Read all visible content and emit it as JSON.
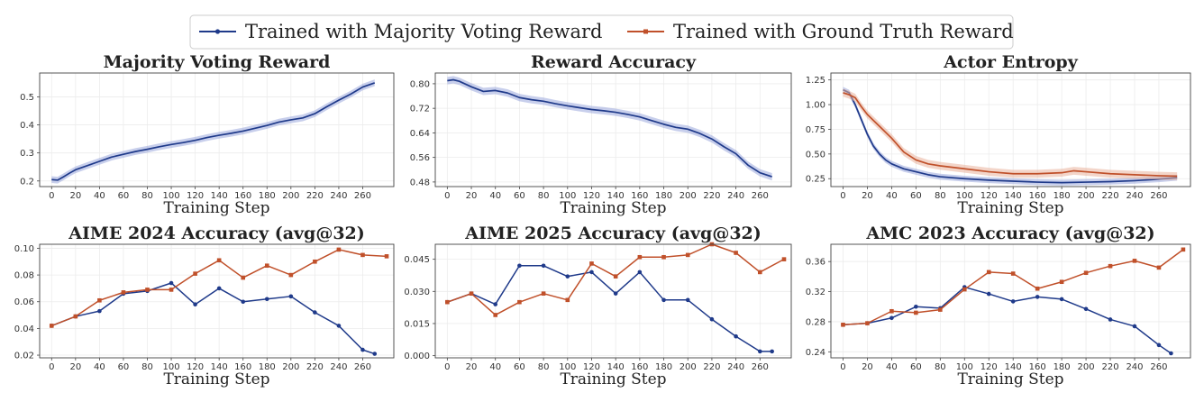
{
  "legend": [
    {
      "label": "Trained with Majority Voting Reward",
      "color": "#1f3a8a",
      "marker": "circle"
    },
    {
      "label": "Trained with Ground Truth Reward",
      "color": "#c0502a",
      "marker": "square"
    }
  ],
  "colors": {
    "majority": "#1f3a8a",
    "ground_truth": "#c0502a",
    "band_majority": "#9aa8dc",
    "band_gt": "#eab29c"
  },
  "chart_data": [
    {
      "type": "line",
      "title": "Majority Voting Reward",
      "xlabel": "Training Step",
      "xticks": [
        0,
        20,
        40,
        60,
        80,
        100,
        120,
        140,
        160,
        180,
        200,
        220,
        240,
        260
      ],
      "yticks": [
        0.2,
        0.3,
        0.4,
        0.5
      ],
      "ytick_labels": [
        "0.2",
        "0.3",
        "0.4",
        "0.5"
      ],
      "xlim": [
        -10,
        286
      ],
      "ylim": [
        0.18,
        0.585
      ],
      "grid": true,
      "series": [
        {
          "name": "Trained with Majority Voting Reward",
          "key": "majority",
          "band": 0.012,
          "x": [
            0,
            5,
            10,
            15,
            20,
            30,
            40,
            50,
            60,
            70,
            80,
            90,
            100,
            110,
            120,
            130,
            140,
            150,
            160,
            170,
            180,
            190,
            200,
            210,
            220,
            230,
            240,
            250,
            260,
            270
          ],
          "y": [
            0.205,
            0.203,
            0.215,
            0.228,
            0.24,
            0.255,
            0.27,
            0.285,
            0.295,
            0.305,
            0.313,
            0.322,
            0.33,
            0.337,
            0.345,
            0.355,
            0.363,
            0.37,
            0.378,
            0.388,
            0.398,
            0.41,
            0.418,
            0.425,
            0.44,
            0.465,
            0.488,
            0.51,
            0.535,
            0.55
          ]
        }
      ]
    },
    {
      "type": "line",
      "title": "Reward Accuracy",
      "xlabel": "Training Step",
      "xticks": [
        0,
        20,
        40,
        60,
        80,
        100,
        120,
        140,
        160,
        180,
        200,
        220,
        240,
        260
      ],
      "yticks": [
        0.48,
        0.56,
        0.64,
        0.72,
        0.8
      ],
      "ytick_labels": [
        "0.48",
        "0.56",
        "0.64",
        "0.72",
        "0.80"
      ],
      "xlim": [
        -10,
        286
      ],
      "ylim": [
        0.465,
        0.835
      ],
      "grid": true,
      "series": [
        {
          "name": "Trained with Majority Voting Reward",
          "key": "majority",
          "band": 0.012,
          "x": [
            0,
            5,
            10,
            20,
            30,
            40,
            50,
            60,
            70,
            80,
            90,
            100,
            110,
            120,
            130,
            140,
            150,
            160,
            170,
            180,
            190,
            200,
            210,
            220,
            230,
            240,
            250,
            260,
            270
          ],
          "y": [
            0.81,
            0.813,
            0.808,
            0.79,
            0.775,
            0.778,
            0.77,
            0.755,
            0.748,
            0.743,
            0.735,
            0.728,
            0.722,
            0.716,
            0.712,
            0.707,
            0.7,
            0.692,
            0.68,
            0.668,
            0.658,
            0.652,
            0.638,
            0.62,
            0.595,
            0.572,
            0.535,
            0.51,
            0.497
          ]
        }
      ]
    },
    {
      "type": "line",
      "title": "Actor Entropy",
      "xlabel": "Training Step",
      "xticks": [
        0,
        20,
        40,
        60,
        80,
        100,
        120,
        140,
        160,
        180,
        200,
        220,
        240,
        260
      ],
      "yticks": [
        0.25,
        0.5,
        0.75,
        1.0,
        1.25
      ],
      "ytick_labels": [
        "0.25",
        "0.50",
        "0.75",
        "1.00",
        "1.25"
      ],
      "xlim": [
        -10,
        286
      ],
      "ylim": [
        0.17,
        1.32
      ],
      "grid": true,
      "series": [
        {
          "name": "Trained with Majority Voting Reward",
          "key": "majority",
          "band": 0.03,
          "x": [
            0,
            5,
            10,
            15,
            20,
            25,
            30,
            35,
            40,
            50,
            60,
            70,
            80,
            100,
            120,
            140,
            160,
            180,
            200,
            220,
            240,
            260,
            275
          ],
          "y": [
            1.15,
            1.12,
            1.0,
            0.85,
            0.7,
            0.58,
            0.5,
            0.44,
            0.4,
            0.35,
            0.32,
            0.29,
            0.27,
            0.25,
            0.235,
            0.225,
            0.215,
            0.21,
            0.215,
            0.22,
            0.23,
            0.245,
            0.26
          ]
        },
        {
          "name": "Trained with Ground Truth Reward",
          "key": "ground_truth",
          "band": 0.04,
          "x": [
            0,
            5,
            10,
            15,
            20,
            30,
            40,
            50,
            60,
            70,
            80,
            100,
            120,
            140,
            160,
            180,
            190,
            200,
            220,
            240,
            260,
            275
          ],
          "y": [
            1.12,
            1.1,
            1.07,
            0.98,
            0.9,
            0.78,
            0.66,
            0.52,
            0.44,
            0.4,
            0.38,
            0.35,
            0.32,
            0.3,
            0.3,
            0.31,
            0.33,
            0.32,
            0.3,
            0.29,
            0.28,
            0.275
          ]
        }
      ]
    },
    {
      "type": "line",
      "title": "AIME 2024 Accuracy (avg@32)",
      "xlabel": "Training Step",
      "xticks": [
        0,
        20,
        40,
        60,
        80,
        100,
        120,
        140,
        160,
        180,
        200,
        220,
        240,
        260
      ],
      "yticks": [
        0.02,
        0.04,
        0.06,
        0.08,
        0.1
      ],
      "ytick_labels": [
        "0.02",
        "0.04",
        "0.06",
        "0.08",
        "0.10"
      ],
      "xlim": [
        -10,
        286
      ],
      "ylim": [
        0.018,
        0.103
      ],
      "grid": true,
      "series": [
        {
          "name": "Trained with Majority Voting Reward",
          "key": "majority",
          "x": [
            0,
            20,
            40,
            60,
            80,
            100,
            120,
            140,
            160,
            180,
            200,
            220,
            240,
            260,
            270
          ],
          "y": [
            0.042,
            0.049,
            0.053,
            0.066,
            0.068,
            0.074,
            0.058,
            0.07,
            0.06,
            0.062,
            0.064,
            0.052,
            0.042,
            0.024,
            0.021
          ]
        },
        {
          "name": "Trained with Ground Truth Reward",
          "key": "ground_truth",
          "x": [
            0,
            20,
            40,
            60,
            80,
            100,
            120,
            140,
            160,
            180,
            200,
            220,
            240,
            260,
            280
          ],
          "y": [
            0.042,
            0.049,
            0.061,
            0.067,
            0.069,
            0.069,
            0.081,
            0.091,
            0.078,
            0.087,
            0.08,
            0.09,
            0.099,
            0.095,
            0.094
          ]
        }
      ]
    },
    {
      "type": "line",
      "title": "AIME 2025 Accuracy (avg@32)",
      "xlabel": "Training Step",
      "xticks": [
        0,
        20,
        40,
        60,
        80,
        100,
        120,
        140,
        160,
        180,
        200,
        220,
        240,
        260
      ],
      "yticks": [
        0.0,
        0.015,
        0.03,
        0.045
      ],
      "ytick_labels": [
        "0.000",
        "0.015",
        "0.030",
        "0.045"
      ],
      "xlim": [
        -10,
        286
      ],
      "ylim": [
        -0.001,
        0.052
      ],
      "grid": true,
      "series": [
        {
          "name": "Trained with Majority Voting Reward",
          "key": "majority",
          "x": [
            0,
            20,
            40,
            60,
            80,
            100,
            120,
            140,
            160,
            180,
            200,
            220,
            240,
            260,
            270
          ],
          "y": [
            0.025,
            0.029,
            0.024,
            0.042,
            0.042,
            0.037,
            0.039,
            0.029,
            0.039,
            0.026,
            0.026,
            0.017,
            0.009,
            0.002,
            0.002
          ]
        },
        {
          "name": "Trained with Ground Truth Reward",
          "key": "ground_truth",
          "x": [
            0,
            20,
            40,
            60,
            80,
            100,
            120,
            140,
            160,
            180,
            200,
            220,
            240,
            260,
            280
          ],
          "y": [
            0.025,
            0.029,
            0.019,
            0.025,
            0.029,
            0.026,
            0.043,
            0.037,
            0.046,
            0.046,
            0.047,
            0.052,
            0.048,
            0.039,
            0.045
          ]
        }
      ]
    },
    {
      "type": "line",
      "title": "AMC 2023 Accuracy (avg@32)",
      "xlabel": "Training Step",
      "xticks": [
        0,
        20,
        40,
        60,
        80,
        100,
        120,
        140,
        160,
        180,
        200,
        220,
        240,
        260
      ],
      "yticks": [
        0.24,
        0.28,
        0.32,
        0.36
      ],
      "ytick_labels": [
        "0.24",
        "0.28",
        "0.32",
        "0.36"
      ],
      "xlim": [
        -10,
        286
      ],
      "ylim": [
        0.232,
        0.383
      ],
      "grid": true,
      "series": [
        {
          "name": "Trained with Majority Voting Reward",
          "key": "majority",
          "x": [
            0,
            20,
            40,
            60,
            80,
            100,
            120,
            140,
            160,
            180,
            200,
            220,
            240,
            260,
            270
          ],
          "y": [
            0.276,
            0.278,
            0.285,
            0.3,
            0.298,
            0.326,
            0.317,
            0.307,
            0.313,
            0.31,
            0.297,
            0.283,
            0.274,
            0.249,
            0.238
          ]
        },
        {
          "name": "Trained with Ground Truth Reward",
          "key": "ground_truth",
          "x": [
            0,
            20,
            40,
            60,
            80,
            100,
            120,
            140,
            160,
            180,
            200,
            220,
            240,
            260,
            280
          ],
          "y": [
            0.276,
            0.278,
            0.294,
            0.292,
            0.296,
            0.323,
            0.346,
            0.344,
            0.324,
            0.333,
            0.345,
            0.354,
            0.361,
            0.352,
            0.376
          ]
        }
      ]
    }
  ]
}
